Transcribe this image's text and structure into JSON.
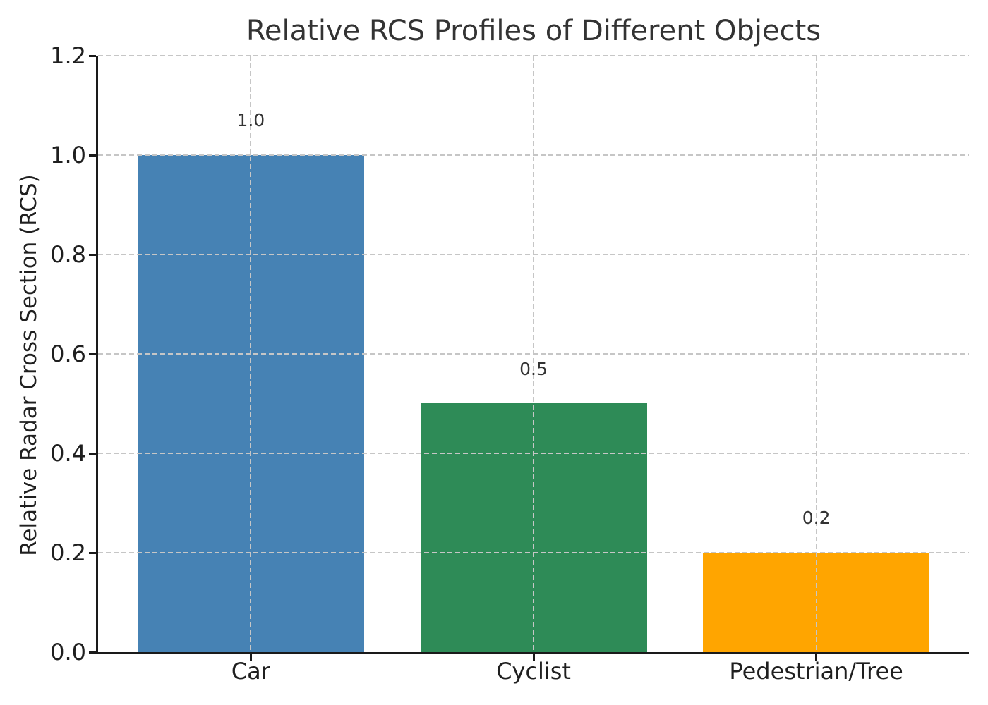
{
  "chart_data": {
    "type": "bar",
    "title": "Relative RCS Profiles of Different Objects",
    "ylabel": "Relative Radar Cross Section (RCS)",
    "xlabel": "",
    "categories": [
      "Car",
      "Cyclist",
      "Pedestrian/Tree"
    ],
    "values": [
      1.0,
      0.5,
      0.2
    ],
    "bar_value_labels": [
      "1.0",
      "0.5",
      "0.2"
    ],
    "bar_colors": [
      "#4682b4",
      "#2e8b57",
      "#ffa500"
    ],
    "bar_width_fraction": 0.8,
    "ylim": [
      0.0,
      1.2
    ],
    "yticks": [
      0.0,
      0.2,
      0.4,
      0.6,
      0.8,
      1.0,
      1.2
    ],
    "ytick_labels": [
      "0.0",
      "0.2",
      "0.4",
      "0.6",
      "0.8",
      "1.0",
      "1.2"
    ],
    "grid": {
      "style": "dashed",
      "horizontal": true,
      "vertical": true,
      "drawn_above_bars": true
    },
    "legend": null,
    "spines": {
      "left": true,
      "bottom": true,
      "top": false,
      "right": false
    }
  },
  "colors": {
    "background": "#ffffff",
    "title_text": "#333333",
    "tick_text": "#1f1f1f",
    "value_label_text": "#333333",
    "axis_spine": "#1a1a1a",
    "grid": "#c6c6c6",
    "bar_blue": "#4682b4",
    "bar_green": "#2e8b57",
    "bar_orange": "#ffa500"
  }
}
